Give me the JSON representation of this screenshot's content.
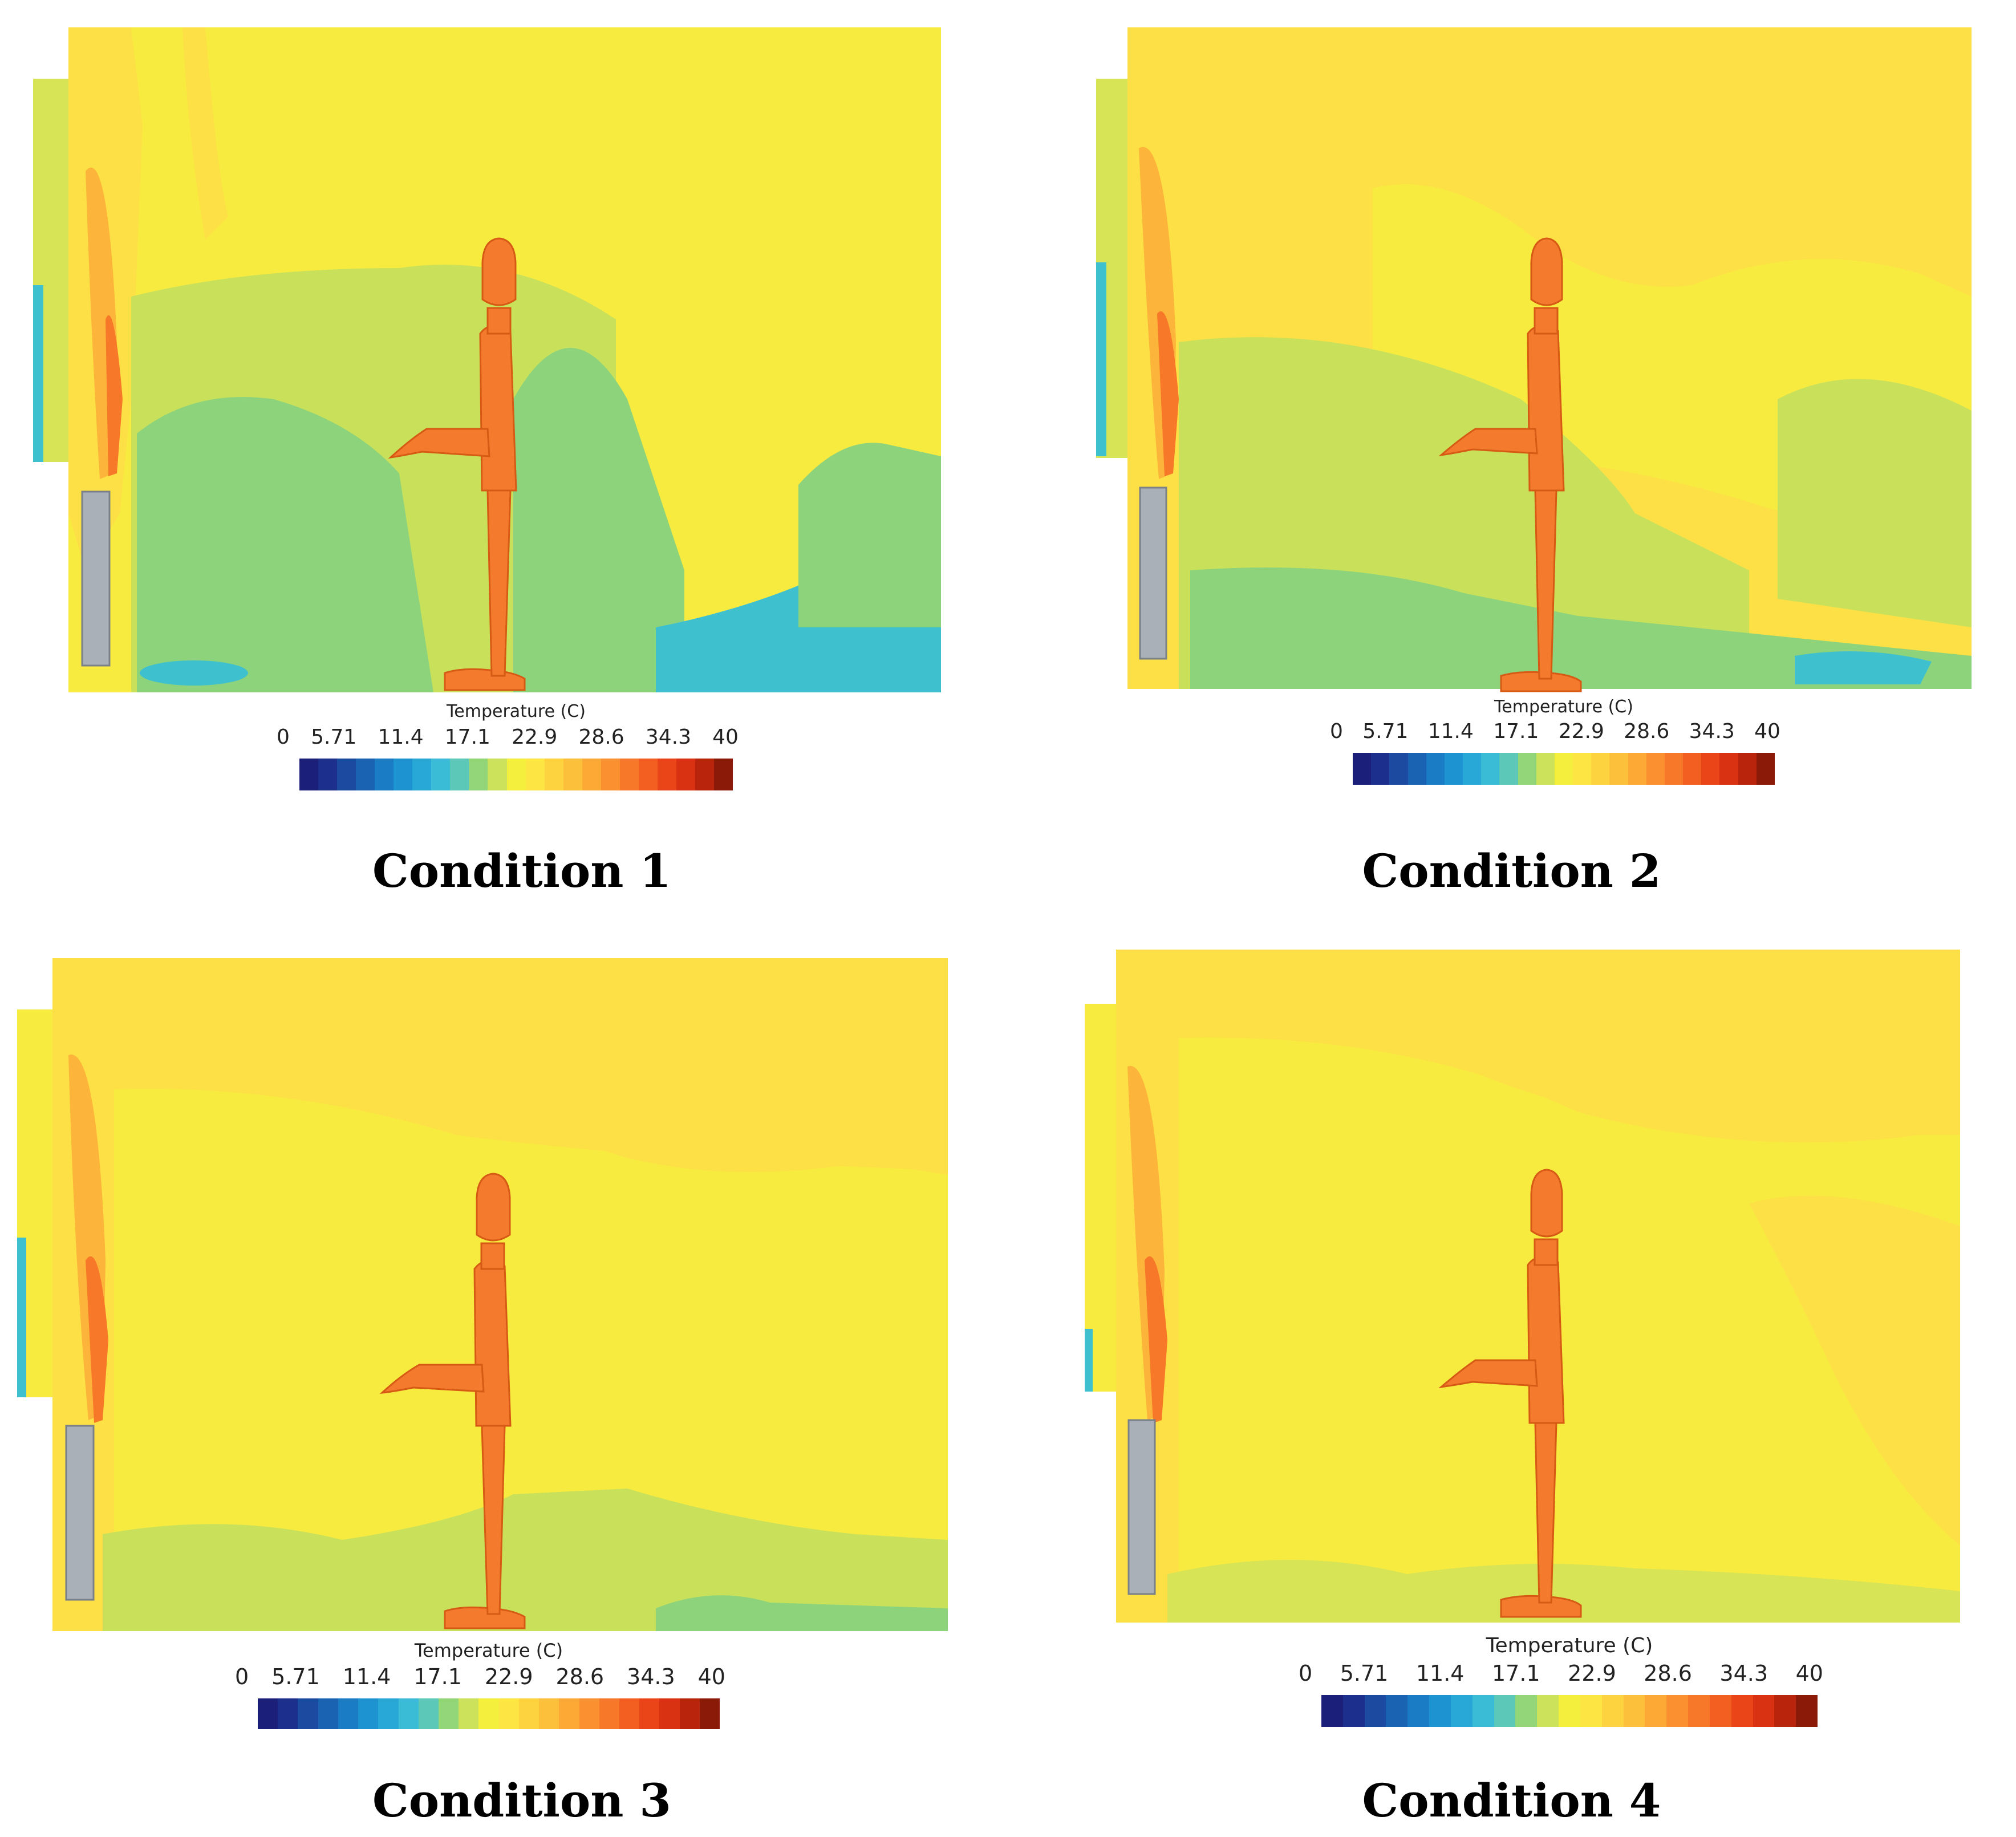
{
  "colorbar": {
    "title": "Temperature (C)",
    "ticks": [
      "0",
      "5.71",
      "11.4",
      "17.1",
      "22.9",
      "28.6",
      "34.3",
      "40"
    ],
    "range": [
      0,
      40
    ],
    "colors": [
      "#1b1f7a",
      "#1c2f8c",
      "#1b4aa0",
      "#1a63b3",
      "#1a7cc4",
      "#1e93d1",
      "#27a8d7",
      "#3abbd6",
      "#5cc8b8",
      "#93d579",
      "#cbe25a",
      "#f4ee3d",
      "#fde543",
      "#fdd43f",
      "#fcc03b",
      "#fca936",
      "#fa902f",
      "#f77828",
      "#f25f20",
      "#ea4519",
      "#d93212",
      "#b8250c",
      "#8c1a08"
    ]
  },
  "panels": [
    {
      "caption": "Condition 1"
    },
    {
      "caption": "Condition 2"
    },
    {
      "caption": "Condition 3"
    },
    {
      "caption": "Condition 4"
    }
  ]
}
